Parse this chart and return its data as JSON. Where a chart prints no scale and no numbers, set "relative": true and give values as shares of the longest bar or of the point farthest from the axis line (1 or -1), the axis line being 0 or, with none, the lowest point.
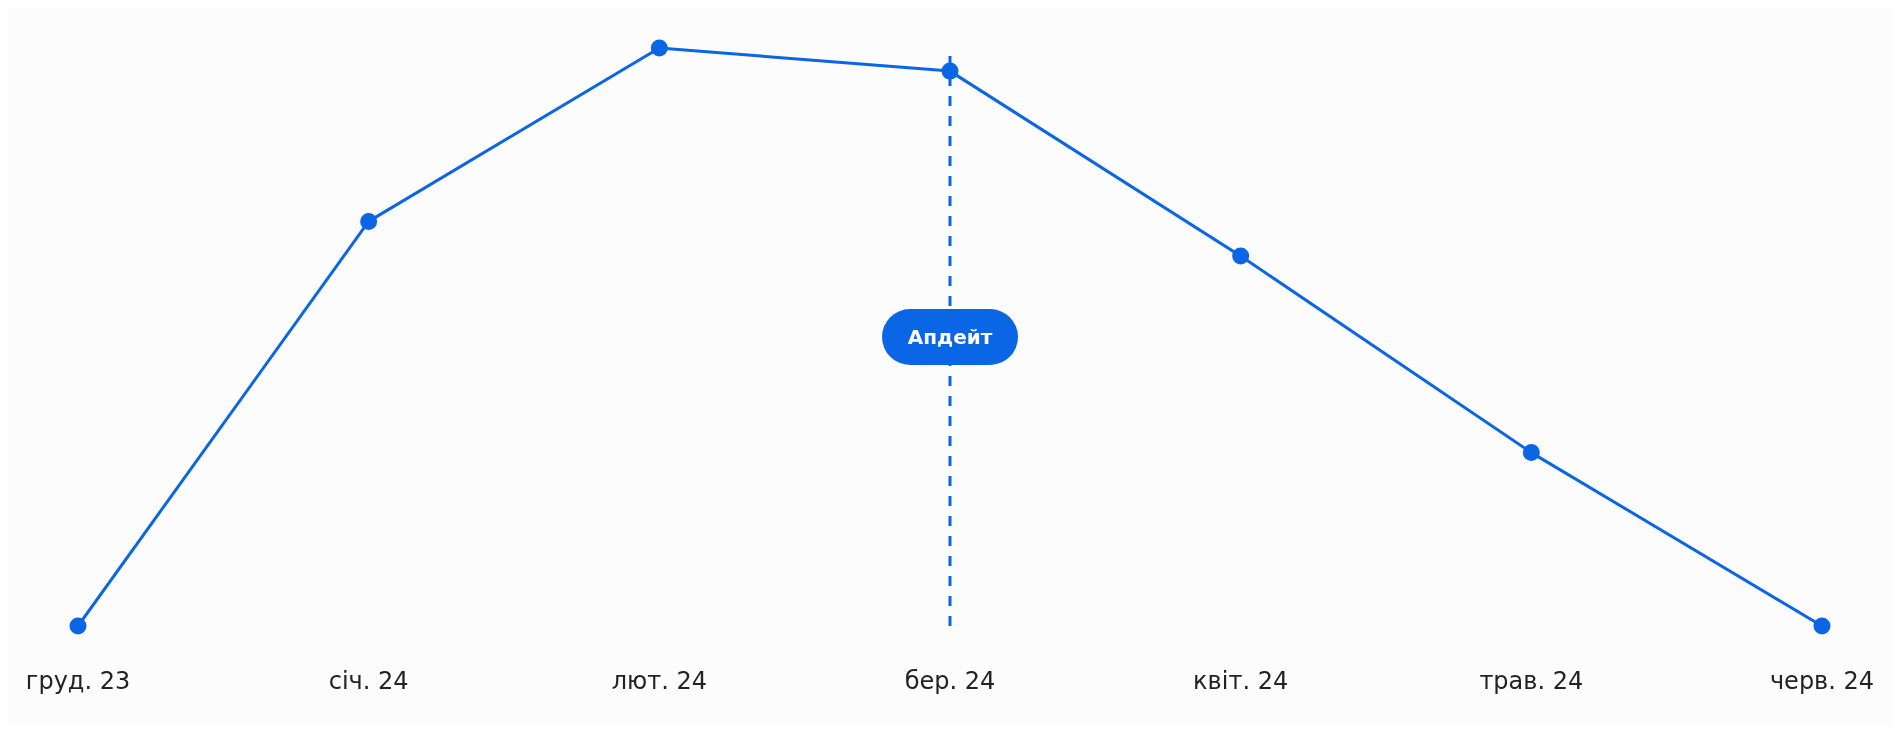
{
  "chart_data": {
    "type": "line",
    "relative": true,
    "categories": [
      "груд. 23",
      "січ. 24",
      "лют. 24",
      "бер. 24",
      "квіт. 24",
      "трав. 24",
      "черв. 24"
    ],
    "series": [
      {
        "color": "#0a66e4",
        "values": [
          0,
          0.7,
          1,
          0.96,
          0.64,
          0.3,
          0
        ]
      }
    ],
    "marker": "circle",
    "line_style": "solid",
    "legend": false,
    "grid": false,
    "ref_lines": [
      {
        "axis": "x",
        "value": "бер. 24",
        "label": "Апдейт",
        "color": "#0a66e4",
        "line_style": "dashed"
      }
    ]
  }
}
